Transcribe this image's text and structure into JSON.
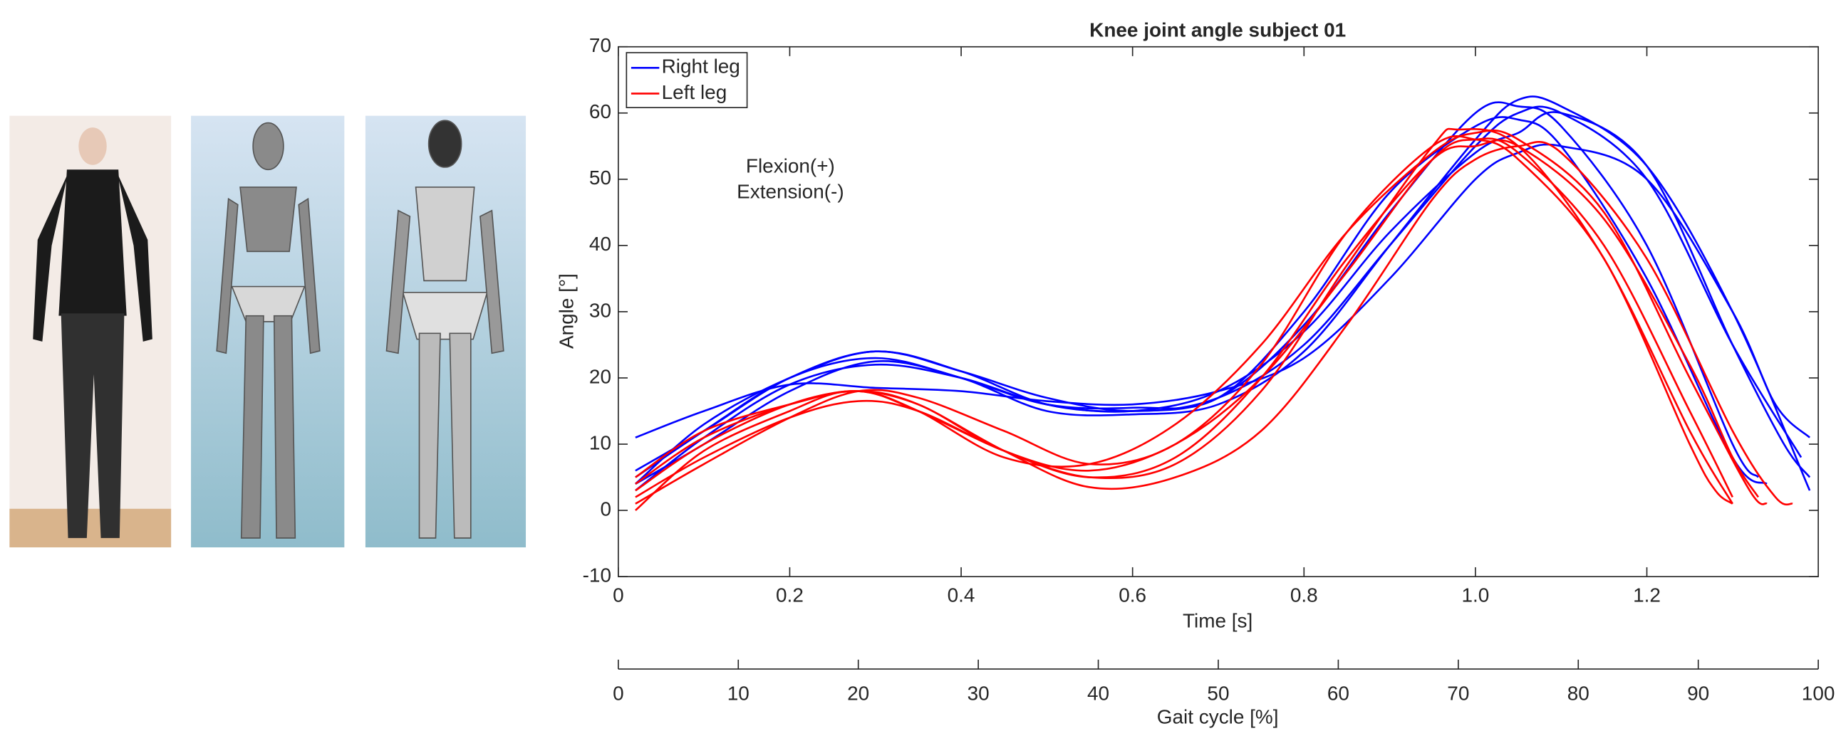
{
  "chart_data": {
    "type": "line",
    "title": "Knee joint angle subject 01",
    "xlabel": "Time [s]",
    "ylabel": "Angle [°]",
    "x2label": "Gait cycle [%]",
    "annotation": [
      "Flexion(+)",
      "Extension(-)"
    ],
    "xlim": [
      0,
      1.4
    ],
    "ylim": [
      -10,
      70
    ],
    "x2lim": [
      0,
      100
    ],
    "xticks": [
      0,
      0.2,
      0.4,
      0.6,
      0.8,
      {
        "value": 1,
        "label": "1.0"
      },
      1.2
    ],
    "yticks": [
      -10,
      0,
      10,
      20,
      30,
      40,
      50,
      60,
      70
    ],
    "x2ticks": [
      0,
      10,
      20,
      30,
      40,
      50,
      60,
      70,
      80,
      90,
      100
    ],
    "legend": "upper left",
    "series": [
      {
        "name": "Right leg",
        "color": "#0000ff",
        "trials": [
          {
            "x": [
              0.02,
              0.1,
              0.2,
              0.3,
              0.4,
              0.5,
              0.6,
              0.7,
              0.8,
              0.9,
              1.0,
              1.05,
              1.1,
              1.2,
              1.3,
              1.35,
              1.39
            ],
            "values": [
              11,
              15,
              19,
              18.5,
              18,
              16.5,
              16,
              18,
              23,
              35,
              50,
              54,
              55,
              50,
              30,
              16,
              11
            ]
          },
          {
            "x": [
              0.02,
              0.1,
              0.2,
              0.3,
              0.4,
              0.5,
              0.6,
              0.7,
              0.8,
              0.9,
              1.0,
              1.05,
              1.1,
              1.2,
              1.3,
              1.33
            ],
            "values": [
              6,
              12,
              20,
              24,
              21,
              16,
              15,
              17,
              28,
              45,
              60,
              61,
              58,
              40,
              10,
              5
            ]
          },
          {
            "x": [
              0.02,
              0.1,
              0.2,
              0.3,
              0.4,
              0.5,
              0.6,
              0.7,
              0.8,
              0.9,
              1.0,
              1.05,
              1.1,
              1.2,
              1.3,
              1.38
            ],
            "values": [
              4,
              13,
              20,
              24,
              21,
              17,
              15,
              17,
              25,
              40,
              55,
              60,
              60,
              50,
              25,
              8
            ]
          },
          {
            "x": [
              0.02,
              0.1,
              0.2,
              0.3,
              0.4,
              0.5,
              0.6,
              0.7,
              0.8,
              0.9,
              1.0,
              1.05,
              1.1,
              1.2,
              1.3,
              1.39
            ],
            "values": [
              4,
              10,
              18,
              22.5,
              20,
              15,
              14.5,
              16,
              24,
              40,
              56,
              62,
              61,
              52,
              30,
              3
            ]
          },
          {
            "x": [
              0.02,
              0.1,
              0.2,
              0.3,
              0.4,
              0.5,
              0.6,
              0.7,
              0.8,
              0.9,
              1.0,
              1.05,
              1.1,
              1.2,
              1.3,
              1.36,
              1.39
            ],
            "values": [
              3,
              11,
              19,
              22,
              20,
              16,
              15,
              18,
              27,
              42,
              54,
              57,
              60,
              52,
              25,
              10,
              5
            ]
          },
          {
            "x": [
              0.02,
              0.1,
              0.2,
              0.3,
              0.4,
              0.5,
              0.6,
              0.7,
              0.8,
              0.9,
              1.0,
              1.05,
              1.1,
              1.2,
              1.3,
              1.34
            ],
            "values": [
              5,
              12,
              20,
              23,
              20,
              16,
              15.5,
              17,
              30,
              48,
              58,
              59,
              55,
              35,
              8,
              4
            ]
          }
        ]
      },
      {
        "name": "Left leg",
        "color": "#ff0000",
        "trials": [
          {
            "x": [
              0.02,
              0.1,
              0.2,
              0.27,
              0.35,
              0.45,
              0.55,
              0.65,
              0.75,
              0.85,
              0.95,
              1.0,
              1.05,
              1.15,
              1.25,
              1.3
            ],
            "values": [
              0,
              9,
              15,
              18,
              16,
              9,
              6,
              10,
              20,
              36,
              53,
              56,
              54,
              40,
              15,
              2
            ]
          },
          {
            "x": [
              0.02,
              0.1,
              0.2,
              0.28,
              0.35,
              0.45,
              0.55,
              0.65,
              0.75,
              0.85,
              0.95,
              0.98,
              1.05,
              1.15,
              1.25,
              1.3
            ],
            "values": [
              2,
              8,
              14,
              16.5,
              15,
              9,
              5,
              7,
              18,
              37,
              55,
              57.5,
              55,
              38,
              12,
              1
            ]
          },
          {
            "x": [
              0.02,
              0.1,
              0.2,
              0.28,
              0.35,
              0.45,
              0.55,
              0.65,
              0.75,
              0.85,
              0.95,
              1.0,
              1.05,
              1.15,
              1.25,
              1.28,
              1.3
            ],
            "values": [
              1,
              7,
              14,
              18,
              17,
              12,
              7,
              10,
              22,
              42,
              55,
              56,
              53,
              38,
              10,
              3,
              1
            ]
          },
          {
            "x": [
              0.02,
              0.1,
              0.2,
              0.28,
              0.35,
              0.45,
              0.55,
              0.65,
              0.75,
              0.85,
              0.95,
              1.0,
              1.05,
              1.1,
              1.2,
              1.3,
              1.35,
              1.37
            ],
            "values": [
              3,
              10,
              16,
              18,
              16,
              9,
              3.5,
              5,
              12,
              28,
              47,
              53,
              55,
              54,
              38,
              12,
              2,
              1
            ]
          },
          {
            "x": [
              0.02,
              0.1,
              0.2,
              0.28,
              0.35,
              0.45,
              0.55,
              0.65,
              0.75,
              0.85,
              0.95,
              1.0,
              1.05,
              1.15,
              1.25,
              1.32,
              1.34
            ],
            "values": [
              4,
              11,
              16,
              18,
              15,
              8,
              7,
              13,
              25,
              42,
              54,
              57,
              56,
              45,
              20,
              3,
              1
            ]
          },
          {
            "x": [
              0.02,
              0.1,
              0.2,
              0.28,
              0.35,
              0.45,
              0.55,
              0.65,
              0.75,
              0.85,
              0.95,
              1.0,
              1.05,
              1.15,
              1.25,
              1.3,
              1.33
            ],
            "values": [
              5,
              12,
              16,
              18,
              15,
              9,
              5,
              8,
              20,
              38,
              53,
              55,
              55,
              44,
              22,
              8,
              2
            ]
          }
        ]
      }
    ]
  }
}
